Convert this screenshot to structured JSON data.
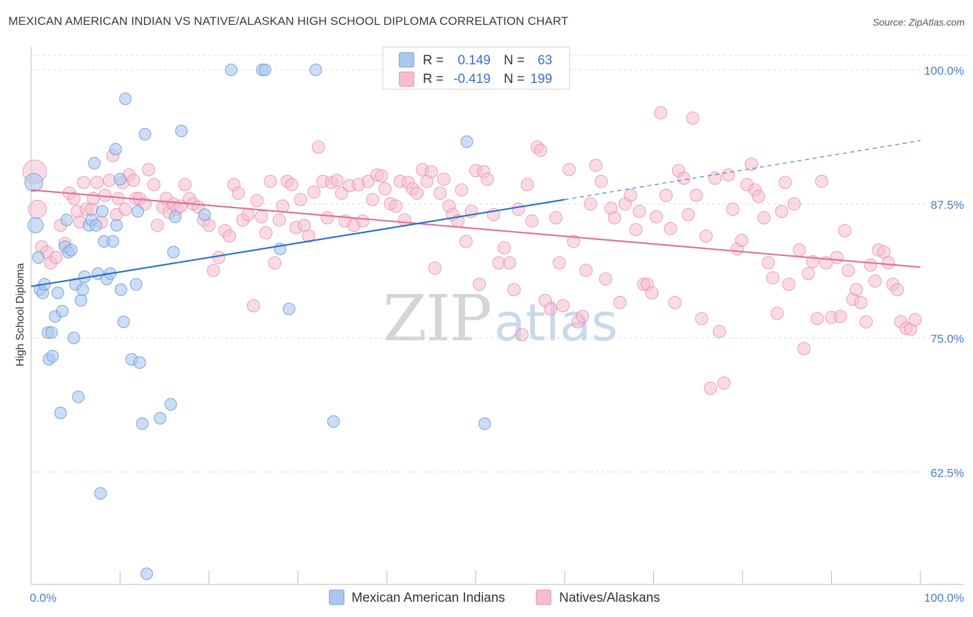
{
  "title": "MEXICAN AMERICAN INDIAN VS NATIVE/ALASKAN HIGH SCHOOL DIPLOMA CORRELATION CHART",
  "source": "Source: ZipAtlas.com",
  "watermark": {
    "zip": "ZIP",
    "atlas": "atlas"
  },
  "colors": {
    "blue_fill": "#aac8ef",
    "blue_stroke": "#6e9ad6",
    "blue_line": "#2a6fcf",
    "pink_fill": "#f6bdd0",
    "pink_stroke": "#e48aaa",
    "pink_line": "#e0709a",
    "grid": "#dcdcdc",
    "tick_text": "#4a7cc9"
  },
  "legend": {
    "rows": [
      {
        "r_label": "R =",
        "r_value": "0.149",
        "n_label": "N =",
        "n_value": "63"
      },
      {
        "r_label": "R =",
        "r_value": "-0.419",
        "n_label": "N =",
        "n_value": "199"
      }
    ]
  },
  "chart_data": {
    "type": "scatter",
    "title": "MEXICAN AMERICAN INDIAN VS NATIVE/ALASKAN HIGH SCHOOL DIPLOMA CORRELATION CHART",
    "xlabel": "",
    "ylabel": "High School Diploma",
    "xlim": [
      0,
      100
    ],
    "ylim": [
      52,
      102
    ],
    "x_tick_labels": [
      "0.0%",
      "100.0%"
    ],
    "y_ticks": [
      {
        "value": 62.5,
        "label": "62.5%"
      },
      {
        "value": 75.0,
        "label": "75.0%"
      },
      {
        "value": 87.5,
        "label": "87.5%"
      },
      {
        "value": 100.0,
        "label": "100.0%"
      }
    ],
    "legend_placement": "bottom-center",
    "series": [
      {
        "name": "Mexican American Indians",
        "color": "#aac8ef",
        "r": 0.149,
        "n": 63,
        "trend": {
          "x0": 0,
          "y0": 79.8,
          "x1": 60,
          "y1": 87.9,
          "dashed_to_x": 100,
          "dashed_to_y": 93.4
        },
        "points": [
          [
            0.3,
            89.5
          ],
          [
            0.5,
            85.5
          ],
          [
            0.8,
            82.5
          ],
          [
            1.0,
            79.5
          ],
          [
            1.3,
            79.2
          ],
          [
            1.5,
            80.0
          ],
          [
            1.9,
            75.5
          ],
          [
            2.0,
            73.0
          ],
          [
            2.3,
            75.5
          ],
          [
            2.4,
            73.3
          ],
          [
            2.7,
            77.0
          ],
          [
            3.0,
            79.2
          ],
          [
            3.3,
            68.0
          ],
          [
            3.5,
            77.5
          ],
          [
            3.8,
            83.5
          ],
          [
            4.0,
            86.0
          ],
          [
            4.2,
            83.0
          ],
          [
            4.5,
            83.2
          ],
          [
            4.8,
            75.0
          ],
          [
            5.0,
            80.0
          ],
          [
            5.3,
            69.5
          ],
          [
            5.6,
            78.5
          ],
          [
            5.8,
            79.5
          ],
          [
            6.0,
            80.7
          ],
          [
            6.5,
            85.5
          ],
          [
            6.8,
            86.0
          ],
          [
            7.1,
            91.3
          ],
          [
            7.3,
            85.5
          ],
          [
            7.5,
            81.0
          ],
          [
            7.8,
            60.5
          ],
          [
            8.0,
            86.8
          ],
          [
            8.2,
            84.0
          ],
          [
            8.5,
            80.5
          ],
          [
            8.9,
            81.0
          ],
          [
            9.2,
            84.0
          ],
          [
            9.5,
            92.6
          ],
          [
            9.6,
            85.5
          ],
          [
            10.0,
            89.8
          ],
          [
            10.1,
            79.5
          ],
          [
            10.4,
            76.5
          ],
          [
            10.6,
            97.3
          ],
          [
            11.3,
            73.0
          ],
          [
            11.8,
            80.0
          ],
          [
            12.0,
            86.8
          ],
          [
            12.2,
            72.7
          ],
          [
            12.5,
            67.0
          ],
          [
            12.8,
            94.0
          ],
          [
            14.5,
            67.5
          ],
          [
            15.7,
            68.8
          ],
          [
            16.0,
            83.0
          ],
          [
            16.2,
            86.3
          ],
          [
            16.9,
            94.3
          ],
          [
            19.5,
            86.5
          ],
          [
            22.5,
            100.0
          ],
          [
            26.0,
            100.0
          ],
          [
            26.3,
            100.0
          ],
          [
            28.0,
            83.3
          ],
          [
            29.0,
            77.7
          ],
          [
            32.0,
            100.0
          ],
          [
            34.0,
            67.2
          ],
          [
            49.0,
            93.3
          ],
          [
            51.0,
            67.0
          ],
          [
            13.0,
            53.0
          ]
        ]
      },
      {
        "name": "Natives/Alaskans",
        "color": "#f6bdd0",
        "r": -0.419,
        "n": 199,
        "trend": {
          "x0": 0,
          "y0": 88.8,
          "x1": 100,
          "y1": 81.6
        },
        "points": [
          [
            0.4,
            90.5
          ],
          [
            0.7,
            87.0
          ],
          [
            1.2,
            83.5
          ],
          [
            1.8,
            83.0
          ],
          [
            2.2,
            82.0
          ],
          [
            2.8,
            82.5
          ],
          [
            3.3,
            85.5
          ],
          [
            3.8,
            83.8
          ],
          [
            4.3,
            88.5
          ],
          [
            4.8,
            88.0
          ],
          [
            5.2,
            86.8
          ],
          [
            5.5,
            85.8
          ],
          [
            5.9,
            89.5
          ],
          [
            6.2,
            87.0
          ],
          [
            6.8,
            87.0
          ],
          [
            7.0,
            88.0
          ],
          [
            7.4,
            89.5
          ],
          [
            7.9,
            85.8
          ],
          [
            8.3,
            88.3
          ],
          [
            8.8,
            89.7
          ],
          [
            9.2,
            92.0
          ],
          [
            9.6,
            86.5
          ],
          [
            9.8,
            88.0
          ],
          [
            10.3,
            89.5
          ],
          [
            10.6,
            87.0
          ],
          [
            11.0,
            90.2
          ],
          [
            11.5,
            89.7
          ],
          [
            11.8,
            88.0
          ],
          [
            12.2,
            88.0
          ],
          [
            12.8,
            87.5
          ],
          [
            13.2,
            90.7
          ],
          [
            13.8,
            89.3
          ],
          [
            14.2,
            85.5
          ],
          [
            14.8,
            87.2
          ],
          [
            15.2,
            88.0
          ],
          [
            15.5,
            86.7
          ],
          [
            16.0,
            87.5
          ],
          [
            16.4,
            87.0
          ],
          [
            16.8,
            87.3
          ],
          [
            17.3,
            89.3
          ],
          [
            17.8,
            88.0
          ],
          [
            18.2,
            87.5
          ],
          [
            18.8,
            87.2
          ],
          [
            19.4,
            86.0
          ],
          [
            20.0,
            85.5
          ],
          [
            20.5,
            81.3
          ],
          [
            21.1,
            82.5
          ],
          [
            21.8,
            85.0
          ],
          [
            22.3,
            84.5
          ],
          [
            22.8,
            89.3
          ],
          [
            23.3,
            88.5
          ],
          [
            23.8,
            86.0
          ],
          [
            24.4,
            86.5
          ],
          [
            25.0,
            78.0
          ],
          [
            25.4,
            87.8
          ],
          [
            25.9,
            86.3
          ],
          [
            26.4,
            84.8
          ],
          [
            26.9,
            89.6
          ],
          [
            27.4,
            82.0
          ],
          [
            27.9,
            86.0
          ],
          [
            28.3,
            87.3
          ],
          [
            28.8,
            89.6
          ],
          [
            29.3,
            89.3
          ],
          [
            29.8,
            85.3
          ],
          [
            30.3,
            87.9
          ],
          [
            30.7,
            85.5
          ],
          [
            31.2,
            84.5
          ],
          [
            31.8,
            88.6
          ],
          [
            32.3,
            92.8
          ],
          [
            32.8,
            89.6
          ],
          [
            33.3,
            86.2
          ],
          [
            33.8,
            89.5
          ],
          [
            34.4,
            89.7
          ],
          [
            34.9,
            88.5
          ],
          [
            35.3,
            85.9
          ],
          [
            35.8,
            89.2
          ],
          [
            36.3,
            85.5
          ],
          [
            36.8,
            89.3
          ],
          [
            37.3,
            85.9
          ],
          [
            37.9,
            89.6
          ],
          [
            38.4,
            87.9
          ],
          [
            38.9,
            90.2
          ],
          [
            39.4,
            90.1
          ],
          [
            39.8,
            88.9
          ],
          [
            40.4,
            87.5
          ],
          [
            41.0,
            87.3
          ],
          [
            41.5,
            89.6
          ],
          [
            42.0,
            86.0
          ],
          [
            42.4,
            89.5
          ],
          [
            42.9,
            88.9
          ],
          [
            43.4,
            88.5
          ],
          [
            44.0,
            90.7
          ],
          [
            44.5,
            89.6
          ],
          [
            45.0,
            90.5
          ],
          [
            45.4,
            81.5
          ],
          [
            46.0,
            88.5
          ],
          [
            46.4,
            89.8
          ],
          [
            47.0,
            87.3
          ],
          [
            47.4,
            86.5
          ],
          [
            48.0,
            85.9
          ],
          [
            48.4,
            88.8
          ],
          [
            48.9,
            84.0
          ],
          [
            49.5,
            86.8
          ],
          [
            50.0,
            90.6
          ],
          [
            50.4,
            80.0
          ],
          [
            50.9,
            90.5
          ],
          [
            51.3,
            89.8
          ],
          [
            52.0,
            86.5
          ],
          [
            52.6,
            82.0
          ],
          [
            53.2,
            83.4
          ],
          [
            53.8,
            82.0
          ],
          [
            54.3,
            79.5
          ],
          [
            54.8,
            87.0
          ],
          [
            55.2,
            75.3
          ],
          [
            55.8,
            89.3
          ],
          [
            56.3,
            85.9
          ],
          [
            56.9,
            92.8
          ],
          [
            57.3,
            92.5
          ],
          [
            57.8,
            78.5
          ],
          [
            58.4,
            77.7
          ],
          [
            59.0,
            86.2
          ],
          [
            59.4,
            82.0
          ],
          [
            59.8,
            78.0
          ],
          [
            60.5,
            90.7
          ],
          [
            61.0,
            84.0
          ],
          [
            61.5,
            76.5
          ],
          [
            62.0,
            77.0
          ],
          [
            62.4,
            81.3
          ],
          [
            62.9,
            87.5
          ],
          [
            63.5,
            91.1
          ],
          [
            64.1,
            89.6
          ],
          [
            64.6,
            80.5
          ],
          [
            65.2,
            87.1
          ],
          [
            65.6,
            86.2
          ],
          [
            66.2,
            78.3
          ],
          [
            66.8,
            87.5
          ],
          [
            67.4,
            88.3
          ],
          [
            68.0,
            85.1
          ],
          [
            68.4,
            86.8
          ],
          [
            68.9,
            80.0
          ],
          [
            69.3,
            80.0
          ],
          [
            69.8,
            79.2
          ],
          [
            70.3,
            86.3
          ],
          [
            70.8,
            96.0
          ],
          [
            71.4,
            88.3
          ],
          [
            71.9,
            85.2
          ],
          [
            72.4,
            78.3
          ],
          [
            72.8,
            90.6
          ],
          [
            73.4,
            89.9
          ],
          [
            73.9,
            86.5
          ],
          [
            74.4,
            95.5
          ],
          [
            74.8,
            88.3
          ],
          [
            75.4,
            76.8
          ],
          [
            75.9,
            84.5
          ],
          [
            76.4,
            70.3
          ],
          [
            76.9,
            89.9
          ],
          [
            77.4,
            75.6
          ],
          [
            77.9,
            70.8
          ],
          [
            78.4,
            90.2
          ],
          [
            78.9,
            87.0
          ],
          [
            79.4,
            83.3
          ],
          [
            79.9,
            84.1
          ],
          [
            80.5,
            89.3
          ],
          [
            81.0,
            91.2
          ],
          [
            81.4,
            88.8
          ],
          [
            81.8,
            88.2
          ],
          [
            82.4,
            86.2
          ],
          [
            82.9,
            82.0
          ],
          [
            83.4,
            80.6
          ],
          [
            83.9,
            77.3
          ],
          [
            84.4,
            86.8
          ],
          [
            84.8,
            89.5
          ],
          [
            85.2,
            80.0
          ],
          [
            85.8,
            87.5
          ],
          [
            86.4,
            83.2
          ],
          [
            86.9,
            74.0
          ],
          [
            87.4,
            81.0
          ],
          [
            87.9,
            82.1
          ],
          [
            88.4,
            76.8
          ],
          [
            88.9,
            89.6
          ],
          [
            89.4,
            82.0
          ],
          [
            90.0,
            76.9
          ],
          [
            90.6,
            82.5
          ],
          [
            91.0,
            77.0
          ],
          [
            91.5,
            85.0
          ],
          [
            91.9,
            81.3
          ],
          [
            92.4,
            78.6
          ],
          [
            92.8,
            79.5
          ],
          [
            93.3,
            78.3
          ],
          [
            93.9,
            76.5
          ],
          [
            94.4,
            81.8
          ],
          [
            94.9,
            80.3
          ],
          [
            95.3,
            83.2
          ],
          [
            95.9,
            83.0
          ],
          [
            96.4,
            82.0
          ],
          [
            96.9,
            80.0
          ],
          [
            97.4,
            79.5
          ],
          [
            97.8,
            76.5
          ],
          [
            98.4,
            75.9
          ],
          [
            98.9,
            75.8
          ],
          [
            99.4,
            76.7
          ]
        ]
      }
    ]
  }
}
